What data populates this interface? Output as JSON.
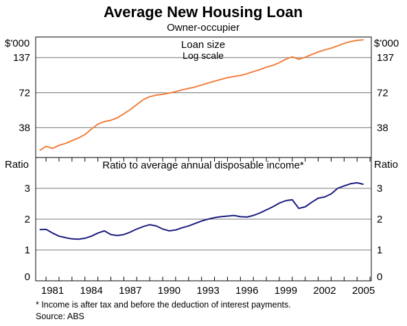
{
  "chart_data": {
    "type": "line",
    "title": "Average New Housing Loan",
    "subtitle": "Owner-occupier",
    "x_tick_labels": [
      "1981",
      "1984",
      "1987",
      "1990",
      "1993",
      "1996",
      "1999",
      "2002",
      "2005"
    ],
    "panels": [
      {
        "name": "loan-size",
        "label": "Loan size",
        "sublabel": "Log scale",
        "unit_label": "$'000",
        "scale": "log",
        "ylim": [
          22,
          200
        ],
        "ticks": [
          38,
          72,
          137
        ],
        "tick_labels": [
          "38",
          "72",
          "137"
        ],
        "grid": true,
        "color": "#f07f3c",
        "x": [
          1980,
          1980.5,
          1981,
          1981.5,
          1982,
          1982.5,
          1983,
          1983.5,
          1984,
          1984.5,
          1985,
          1985.5,
          1986,
          1986.5,
          1987,
          1987.5,
          1988,
          1988.5,
          1989,
          1989.5,
          1990,
          1990.5,
          1991,
          1991.5,
          1992,
          1992.5,
          1993,
          1993.5,
          1994,
          1994.5,
          1995,
          1995.5,
          1996,
          1996.5,
          1997,
          1997.5,
          1998,
          1998.5,
          1999,
          1999.5,
          2000,
          2000.5,
          2001,
          2001.5,
          2002,
          2002.5,
          2003,
          2003.5,
          2004,
          2004.5,
          2005
        ],
        "values": [
          25,
          27,
          26,
          27.5,
          28.5,
          30,
          31.5,
          33.5,
          37,
          40.5,
          42.5,
          43.5,
          45.5,
          49,
          53,
          58,
          63.5,
          67,
          69,
          70,
          71.5,
          73.5,
          76,
          78,
          80,
          83,
          86,
          89,
          92,
          95,
          97,
          99,
          102,
          106,
          110,
          115,
          119,
          125,
          133,
          139,
          133,
          138,
          145,
          152,
          158,
          163,
          170,
          178,
          184,
          188,
          190
        ]
      },
      {
        "name": "income-ratio",
        "label": "Ratio to average annual disposable income*",
        "unit_label": "Ratio",
        "scale": "linear",
        "ylim": [
          0,
          4
        ],
        "ticks": [
          0,
          1,
          2,
          3
        ],
        "tick_labels": [
          "0",
          "1",
          "2",
          "3"
        ],
        "grid": true,
        "color": "#1a1a80",
        "x": [
          1980,
          1980.5,
          1981,
          1981.5,
          1982,
          1982.5,
          1983,
          1983.5,
          1984,
          1984.5,
          1985,
          1985.5,
          1986,
          1986.5,
          1987,
          1987.5,
          1988,
          1988.5,
          1989,
          1989.5,
          1990,
          1990.5,
          1991,
          1991.5,
          1992,
          1992.5,
          1993,
          1993.5,
          1994,
          1994.5,
          1995,
          1995.5,
          1996,
          1996.5,
          1997,
          1997.5,
          1998,
          1998.5,
          1999,
          1999.5,
          2000,
          2000.5,
          2001,
          2001.5,
          2002,
          2002.5,
          2003,
          2003.5,
          2004,
          2004.5,
          2005
        ],
        "values": [
          1.66,
          1.67,
          1.55,
          1.45,
          1.4,
          1.36,
          1.35,
          1.38,
          1.45,
          1.55,
          1.62,
          1.5,
          1.47,
          1.5,
          1.58,
          1.68,
          1.76,
          1.82,
          1.78,
          1.68,
          1.62,
          1.65,
          1.72,
          1.78,
          1.86,
          1.94,
          2.0,
          2.05,
          2.08,
          2.1,
          2.12,
          2.08,
          2.07,
          2.12,
          2.2,
          2.3,
          2.4,
          2.52,
          2.6,
          2.63,
          2.35,
          2.4,
          2.55,
          2.68,
          2.72,
          2.82,
          3.0,
          3.08,
          3.15,
          3.18,
          3.13
        ]
      }
    ],
    "footnote": "*   Income is after tax and before the deduction of interest payments.",
    "source": "Source: ABS"
  }
}
